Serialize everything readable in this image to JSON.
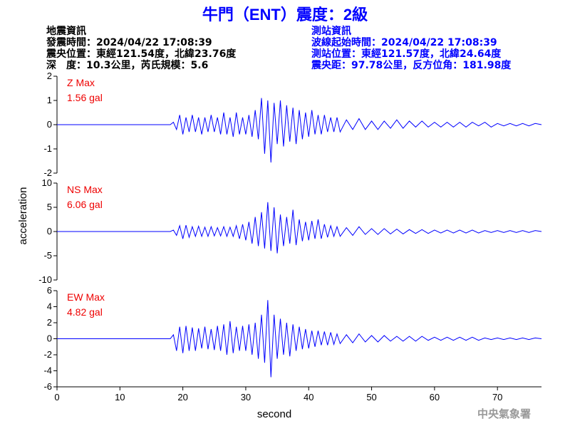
{
  "header": {
    "title": "牛門（ENT）震度：2級",
    "info_left": [
      "地震資訊",
      "發震時間：2024/04/22 17:08:39",
      "震央位置：東經121.54度，北緯23.76度",
      "深　度：10.3公里，芮氏規模：5.6"
    ],
    "info_right": [
      "測站資訊",
      "波線起始時間：2024/04/22 17:08:39",
      "測站位置：東經121.57度，北緯24.64度",
      "震央距：97.78公里，反方位角：181.98度"
    ],
    "footer": "中央氣象署"
  },
  "chart_data": [
    {
      "type": "line",
      "annotation": "Z Max",
      "max_label": "1.56 gal",
      "x": [
        0,
        18,
        18.5,
        19,
        19.5,
        20,
        20.5,
        21,
        21.5,
        22,
        22.5,
        23,
        23.5,
        24,
        24.5,
        25,
        25.5,
        26,
        26.5,
        27,
        27.5,
        28,
        28.5,
        29,
        29.5,
        30,
        30.5,
        31,
        31.5,
        32,
        32.5,
        33,
        33.5,
        34,
        34.5,
        35,
        35.5,
        36,
        36.5,
        37,
        37.5,
        38,
        38.5,
        39,
        39.5,
        40,
        40.5,
        41,
        41.5,
        42,
        42.5,
        43,
        43.5,
        44,
        44.5,
        45,
        46,
        47,
        48,
        49,
        50,
        51,
        52,
        53,
        54,
        55,
        56,
        57,
        58,
        59,
        60,
        61,
        62,
        63,
        64,
        65,
        66,
        67,
        68,
        69,
        70,
        71,
        72,
        73,
        74,
        75,
        76,
        77
      ],
      "series": [
        {
          "color": "#0000ff",
          "values": [
            0,
            0,
            0.1,
            -0.2,
            0.4,
            -0.4,
            0.3,
            -0.3,
            0.4,
            -0.3,
            0.3,
            -0.4,
            0.3,
            -0.3,
            0.4,
            -0.3,
            0.3,
            -0.4,
            0.5,
            -0.4,
            0.3,
            -0.5,
            0.5,
            -0.4,
            0.3,
            -0.4,
            0.4,
            -0.5,
            0.6,
            -0.6,
            1.1,
            -1.2,
            1.0,
            -1.56,
            0.9,
            -0.8,
            1.0,
            -0.9,
            0.8,
            -0.7,
            0.7,
            -0.8,
            0.6,
            -0.6,
            0.5,
            -0.5,
            0.6,
            -0.4,
            0.4,
            -0.4,
            0.4,
            -0.3,
            0.3,
            -0.3,
            0.3,
            -0.3,
            0.2,
            -0.2,
            0.25,
            -0.2,
            0.15,
            -0.2,
            0.15,
            -0.15,
            0.2,
            -0.15,
            0.15,
            -0.1,
            0.15,
            -0.1,
            0.1,
            -0.1,
            0.1,
            -0.1,
            0.1,
            -0.1,
            0.1,
            -0.05,
            0.1,
            -0.1,
            0.05,
            -0.05,
            0.05,
            -0.05,
            0.05,
            -0.05,
            0.05,
            0
          ]
        }
      ],
      "xlim": [
        0,
        77
      ],
      "ylim": [
        -2,
        2
      ],
      "yticks": [
        -2,
        -1,
        0,
        1,
        2
      ]
    },
    {
      "type": "line",
      "annotation": "NS Max",
      "max_label": "6.06 gal",
      "ylabel": "acceleration",
      "x": [
        0,
        18,
        18.5,
        19,
        19.5,
        20,
        20.5,
        21,
        21.5,
        22,
        22.5,
        23,
        23.5,
        24,
        24.5,
        25,
        25.5,
        26,
        26.5,
        27,
        27.5,
        28,
        28.5,
        29,
        29.5,
        30,
        30.5,
        31,
        31.5,
        32,
        32.5,
        33,
        33.5,
        34,
        34.5,
        35,
        35.5,
        36,
        36.5,
        37,
        37.5,
        38,
        38.5,
        39,
        39.5,
        40,
        40.5,
        41,
        41.5,
        42,
        42.5,
        43,
        43.5,
        44,
        44.5,
        45,
        46,
        47,
        48,
        49,
        50,
        51,
        52,
        53,
        54,
        55,
        56,
        57,
        58,
        59,
        60,
        61,
        62,
        63,
        64,
        65,
        66,
        67,
        68,
        69,
        70,
        71,
        72,
        73,
        74,
        75,
        76,
        77
      ],
      "series": [
        {
          "color": "#0000ff",
          "values": [
            0,
            0,
            0.3,
            -0.8,
            1.2,
            -1.5,
            1.3,
            -1.2,
            1.0,
            -1.0,
            1.1,
            -1.0,
            0.9,
            -1.0,
            1.0,
            -0.9,
            0.8,
            -0.9,
            1.0,
            -1.0,
            0.9,
            -1.0,
            1.2,
            -1.5,
            1.5,
            -1.8,
            2.0,
            -2.5,
            3.0,
            -3.0,
            4.0,
            -3.5,
            6.06,
            -4.0,
            5.0,
            -4.5,
            3.5,
            -3.0,
            3.0,
            -2.5,
            4.5,
            -2.8,
            2.5,
            -2.0,
            2.0,
            -1.8,
            2.2,
            -1.5,
            2.5,
            -1.5,
            1.5,
            -1.2,
            1.2,
            -1.0,
            1.0,
            -1.0,
            0.8,
            -0.8,
            1.0,
            -0.6,
            0.6,
            -0.6,
            0.6,
            -0.5,
            0.5,
            -0.5,
            0.4,
            -0.4,
            0.4,
            -0.4,
            0.3,
            -0.3,
            0.3,
            -0.3,
            0.3,
            -0.3,
            0.3,
            -0.3,
            0.2,
            -0.2,
            0.2,
            -0.2,
            0.2,
            -0.2,
            0.2,
            -0.2,
            0.2,
            0
          ]
        }
      ],
      "xlim": [
        0,
        77
      ],
      "ylim": [
        -10,
        10
      ],
      "yticks": [
        -10,
        -5,
        0,
        5,
        10
      ]
    },
    {
      "type": "line",
      "annotation": "EW Max",
      "max_label": "4.82 gal",
      "xlabel": "second",
      "x": [
        0,
        18,
        18.5,
        19,
        19.5,
        20,
        20.5,
        21,
        21.5,
        22,
        22.5,
        23,
        23.5,
        24,
        24.5,
        25,
        25.5,
        26,
        26.5,
        27,
        27.5,
        28,
        28.5,
        29,
        29.5,
        30,
        30.5,
        31,
        31.5,
        32,
        32.5,
        33,
        33.5,
        34,
        34.5,
        35,
        35.5,
        36,
        36.5,
        37,
        37.5,
        38,
        38.5,
        39,
        39.5,
        40,
        40.5,
        41,
        41.5,
        42,
        42.5,
        43,
        43.5,
        44,
        44.5,
        45,
        46,
        47,
        48,
        49,
        50,
        51,
        52,
        53,
        54,
        55,
        56,
        57,
        58,
        59,
        60,
        61,
        62,
        63,
        64,
        65,
        66,
        67,
        68,
        69,
        70,
        71,
        72,
        73,
        74,
        75,
        76,
        77
      ],
      "series": [
        {
          "color": "#0000ff",
          "values": [
            0,
            0,
            0.5,
            -1.5,
            1.5,
            -1.8,
            1.6,
            -1.5,
            1.4,
            -1.5,
            1.3,
            -1.2,
            1.5,
            -1.3,
            1.2,
            -1.4,
            1.6,
            -1.5,
            1.8,
            -2.0,
            2.2,
            -1.8,
            1.5,
            -1.5,
            1.6,
            -1.5,
            1.8,
            -2.0,
            2.0,
            -2.5,
            3.0,
            -3.0,
            4.82,
            -4.8,
            3.0,
            -2.5,
            2.5,
            -2.0,
            2.0,
            -2.2,
            1.8,
            -1.5,
            1.5,
            -1.3,
            1.2,
            -1.2,
            1.0,
            -1.0,
            1.0,
            -0.8,
            0.9,
            -0.8,
            0.8,
            -0.7,
            0.6,
            -0.6,
            0.5,
            -0.5,
            0.6,
            -0.4,
            0.4,
            -0.4,
            0.4,
            -0.3,
            0.3,
            -0.3,
            0.3,
            -0.3,
            0.3,
            -0.2,
            0.2,
            -0.2,
            0.2,
            -0.2,
            0.2,
            -0.2,
            0.2,
            -0.2,
            0.1,
            -0.1,
            0.1,
            -0.1,
            0.1,
            -0.1,
            0.1,
            -0.1,
            0.1,
            0
          ]
        }
      ],
      "xlim": [
        0,
        77
      ],
      "ylim": [
        -6,
        6
      ],
      "yticks": [
        -6,
        -4,
        -2,
        0,
        2,
        4,
        6
      ],
      "xticks": [
        0,
        10,
        20,
        30,
        40,
        50,
        60,
        70
      ]
    }
  ]
}
